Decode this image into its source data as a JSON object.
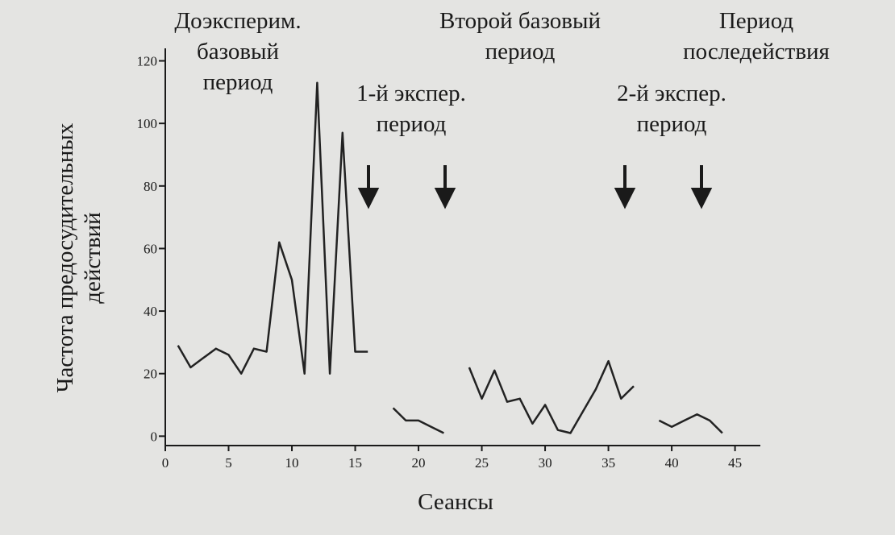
{
  "chart_data": {
    "type": "line",
    "ylabel": [
      "Частота предосудительных",
      "действий"
    ],
    "xlabel": "Сеансы",
    "annotations": [
      [
        "Доэксперим.",
        "базовый",
        "период"
      ],
      [
        "1-й экспер.",
        "период"
      ],
      [
        "Второй базовый",
        "период"
      ],
      [
        "Период",
        "последействия"
      ],
      [
        "2-й экспер.",
        "период"
      ]
    ],
    "x": [
      1,
      2,
      3,
      4,
      5,
      6,
      7,
      8,
      9,
      10,
      11,
      12,
      13,
      14,
      15,
      16,
      17,
      18,
      19,
      20,
      21,
      22,
      23,
      24,
      25,
      26,
      27,
      28,
      29,
      30,
      31,
      32,
      33,
      34,
      35,
      36,
      37,
      38,
      39,
      40,
      41,
      42,
      43,
      44,
      45
    ],
    "series": [
      {
        "color": "#222222",
        "values": [
          29,
          22,
          25,
          28,
          26,
          20,
          28,
          27,
          62,
          50,
          20,
          113,
          20,
          97,
          27,
          27,
          null,
          9,
          5,
          5,
          3,
          1,
          null,
          22,
          12,
          21,
          11,
          12,
          4,
          10,
          2,
          1,
          8,
          15,
          24,
          12,
          16,
          null,
          5,
          3,
          5,
          7,
          5,
          1,
          null
        ]
      }
    ],
    "extra_series_note": null,
    "xlim": [
      0,
      47
    ],
    "ylim": [
      -3,
      124
    ],
    "xticks": [
      0,
      5,
      10,
      15,
      20,
      25,
      30,
      35,
      40,
      45
    ],
    "yticks": [
      0,
      20,
      40,
      60,
      80,
      100,
      120
    ]
  }
}
